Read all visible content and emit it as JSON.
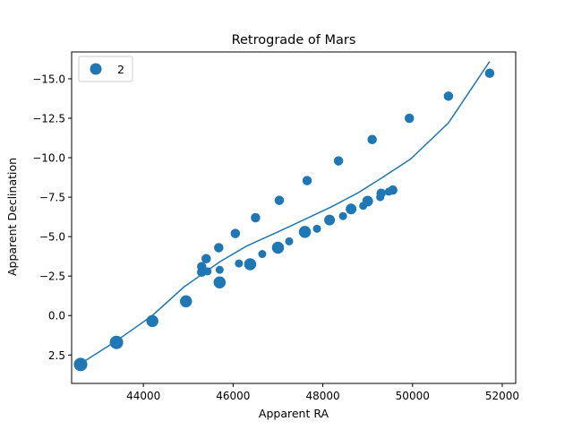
{
  "chart_data": {
    "type": "scatter",
    "title": "Retrograde of Mars",
    "xlabel": "Apparent RA",
    "ylabel": "Apparent Declination",
    "xlim": [
      42400,
      52300
    ],
    "ylim": [
      4.3,
      -16.7
    ],
    "y_inverted": true,
    "xticks": [
      44000,
      46000,
      48000,
      50000,
      52000
    ],
    "xtick_labels": [
      "44000",
      "46000",
      "48000",
      "50000",
      "52000"
    ],
    "yticks": [
      -15.0,
      -12.5,
      -10.0,
      -7.5,
      -5.0,
      -2.5,
      0.0,
      2.5
    ],
    "ytick_labels": [
      "−15.0",
      "−12.5",
      "−10.0",
      "−7.5",
      "−5.0",
      "−2.5",
      "0.0",
      "2.5"
    ],
    "grid": false,
    "legend": {
      "position": "top-left",
      "entries": [
        "2"
      ]
    },
    "colors": {
      "series": "#1f77b4",
      "axes": "#000000",
      "background": "#ffffff"
    },
    "scatter": {
      "points": [
        {
          "x": 42600,
          "y": 3.1,
          "size": 10
        },
        {
          "x": 43400,
          "y": 1.7,
          "size": 10
        },
        {
          "x": 44200,
          "y": 0.35,
          "size": 9
        },
        {
          "x": 44950,
          "y": -0.9,
          "size": 9
        },
        {
          "x": 45300,
          "y": -3.1,
          "size": 7
        },
        {
          "x": 45300,
          "y": -2.75,
          "size": 7
        },
        {
          "x": 45400,
          "y": -3.6,
          "size": 7
        },
        {
          "x": 45430,
          "y": -2.8,
          "size": 6
        },
        {
          "x": 45680,
          "y": -4.3,
          "size": 7
        },
        {
          "x": 45700,
          "y": -2.1,
          "size": 9
        },
        {
          "x": 45700,
          "y": -2.9,
          "size": 6
        },
        {
          "x": 46050,
          "y": -5.2,
          "size": 7
        },
        {
          "x": 46130,
          "y": -3.3,
          "size": 6
        },
        {
          "x": 46380,
          "y": -3.25,
          "size": 9
        },
        {
          "x": 46500,
          "y": -6.2,
          "size": 7
        },
        {
          "x": 46650,
          "y": -3.9,
          "size": 6
        },
        {
          "x": 47000,
          "y": -4.3,
          "size": 9
        },
        {
          "x": 47030,
          "y": -7.3,
          "size": 7
        },
        {
          "x": 47250,
          "y": -4.7,
          "size": 6
        },
        {
          "x": 47600,
          "y": -5.3,
          "size": 9
        },
        {
          "x": 47650,
          "y": -8.55,
          "size": 7
        },
        {
          "x": 47870,
          "y": -5.5,
          "size": 6
        },
        {
          "x": 48150,
          "y": -6.05,
          "size": 8
        },
        {
          "x": 48350,
          "y": -9.8,
          "size": 7
        },
        {
          "x": 48450,
          "y": -6.3,
          "size": 6
        },
        {
          "x": 48630,
          "y": -6.75,
          "size": 8
        },
        {
          "x": 48900,
          "y": -6.95,
          "size": 6
        },
        {
          "x": 49000,
          "y": -7.25,
          "size": 8
        },
        {
          "x": 49100,
          "y": -11.15,
          "size": 7
        },
        {
          "x": 49280,
          "y": -7.5,
          "size": 6
        },
        {
          "x": 49300,
          "y": -7.75,
          "size": 7
        },
        {
          "x": 49470,
          "y": -7.85,
          "size": 6
        },
        {
          "x": 49560,
          "y": -7.95,
          "size": 7
        },
        {
          "x": 49930,
          "y": -12.5,
          "size": 7
        },
        {
          "x": 50800,
          "y": -13.9,
          "size": 7
        },
        {
          "x": 51720,
          "y": -15.35,
          "size": 7
        }
      ]
    },
    "line": {
      "x": [
        42600,
        43400,
        44200,
        44900,
        45300,
        45700,
        46300,
        47000,
        47600,
        48200,
        48800,
        49300,
        49950,
        50800,
        51720
      ],
      "y": [
        3.05,
        1.6,
        0.0,
        -1.8,
        -2.6,
        -3.4,
        -4.4,
        -5.3,
        -6.1,
        -6.9,
        -7.8,
        -8.7,
        -9.9,
        -12.2,
        -16.1
      ]
    }
  }
}
